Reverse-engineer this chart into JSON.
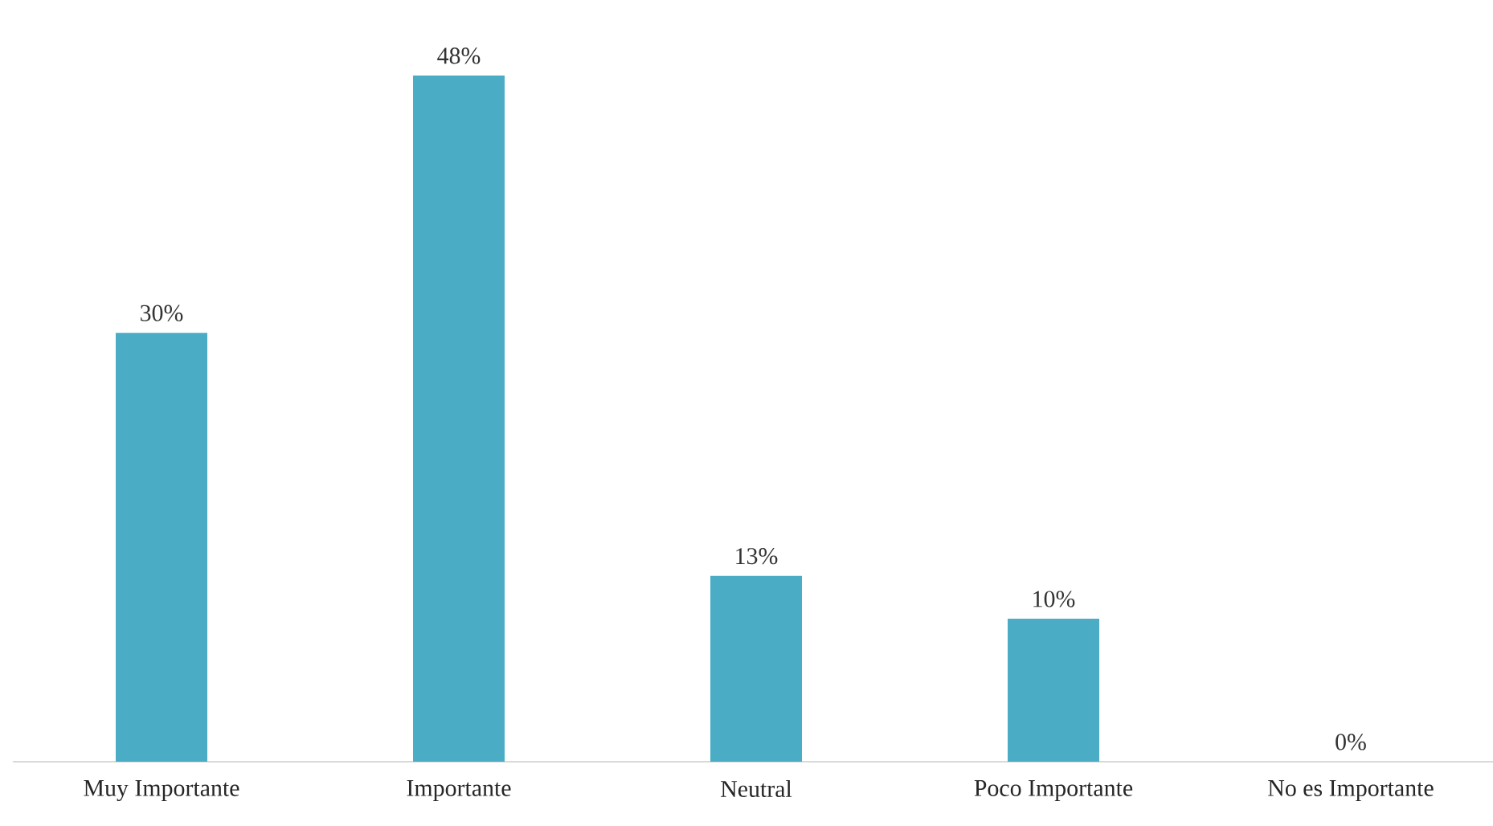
{
  "chart_data": {
    "type": "bar",
    "categories": [
      "Muy Importante",
      "Importante",
      "Neutral",
      "Poco Importante",
      "No es Importante"
    ],
    "values": [
      30,
      48,
      13,
      10,
      0
    ],
    "value_labels": [
      "30%",
      "48%",
      "13%",
      "10%",
      "0%"
    ],
    "color": "#4bacc6"
  }
}
